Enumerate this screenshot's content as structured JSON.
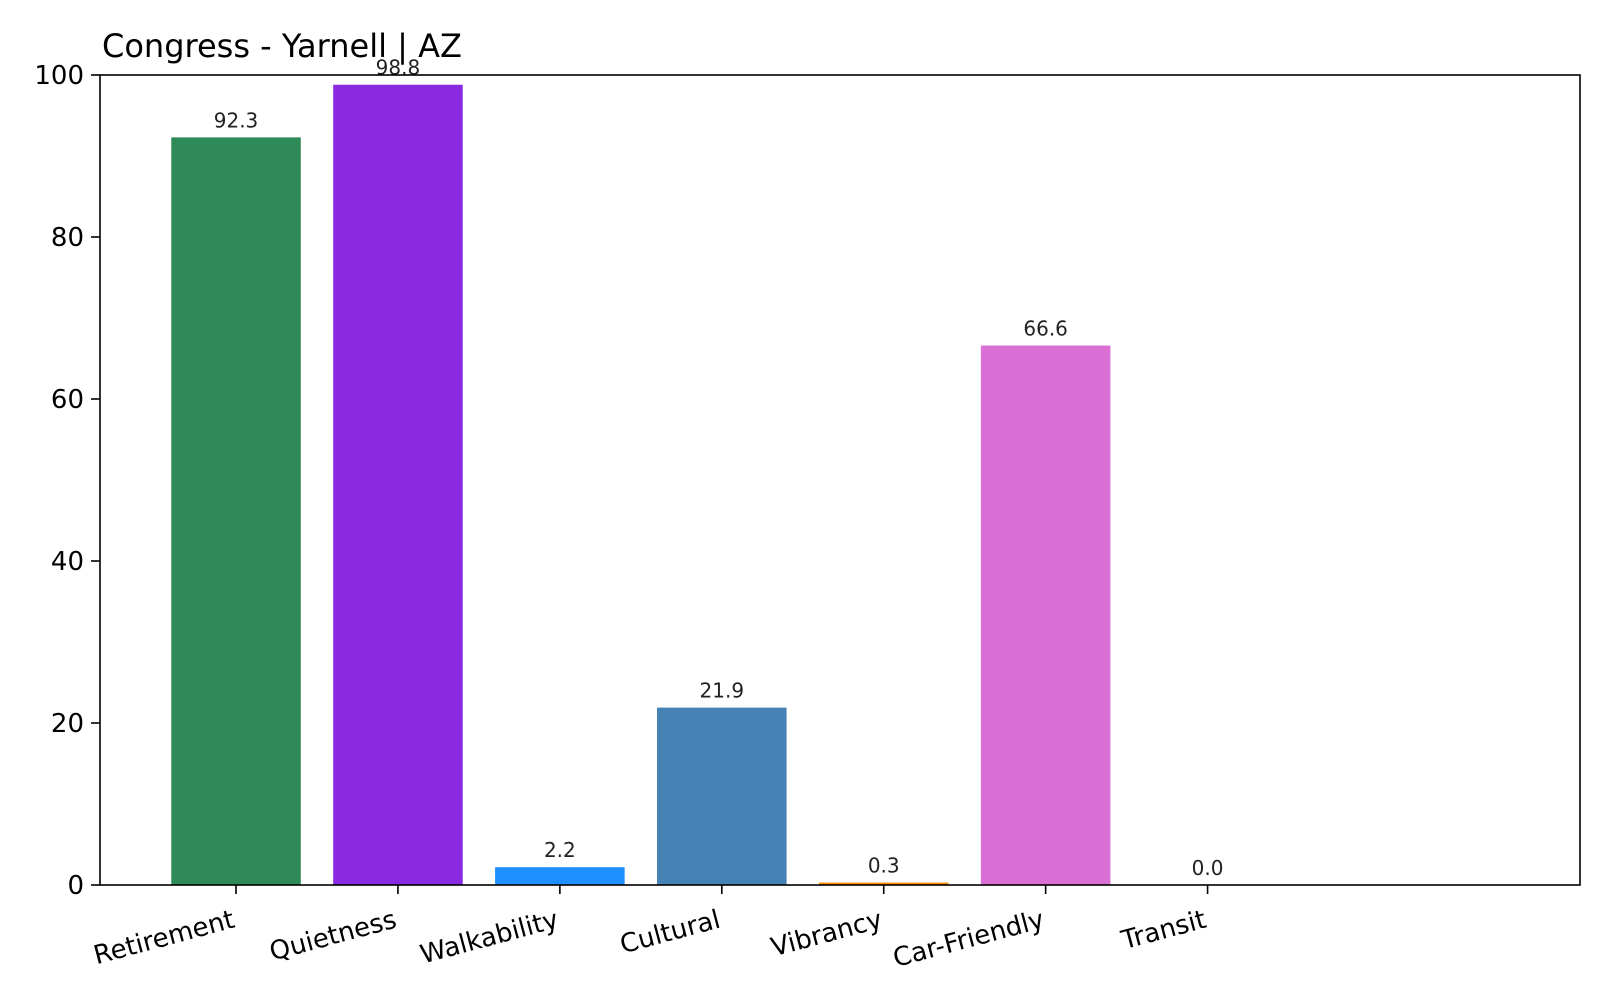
{
  "chart_data": {
    "type": "bar",
    "title": "Congress - Yarnell | AZ",
    "xlabel": "",
    "ylabel": "",
    "categories": [
      "Retirement",
      "Quietness",
      "Walkability",
      "Cultural",
      "Vibrancy",
      "Car-Friendly",
      "Transit"
    ],
    "values": [
      92.3,
      98.8,
      2.2,
      21.9,
      0.3,
      66.6,
      0.0
    ],
    "value_labels": [
      "92.3",
      "98.8",
      "2.2",
      "21.9",
      "0.3",
      "66.6",
      "0.0"
    ],
    "colors": [
      "#2e8b57",
      "#8a2be2",
      "#1e90ff",
      "#4682b4",
      "#ff8c00",
      "#da70d6",
      "#808080"
    ],
    "ylim": [
      0,
      100
    ],
    "yticks": [
      0,
      20,
      40,
      60,
      80,
      100
    ],
    "ytick_labels": [
      "0",
      "20",
      "40",
      "60",
      "80",
      "100"
    ],
    "grid": false,
    "legend": "none"
  }
}
